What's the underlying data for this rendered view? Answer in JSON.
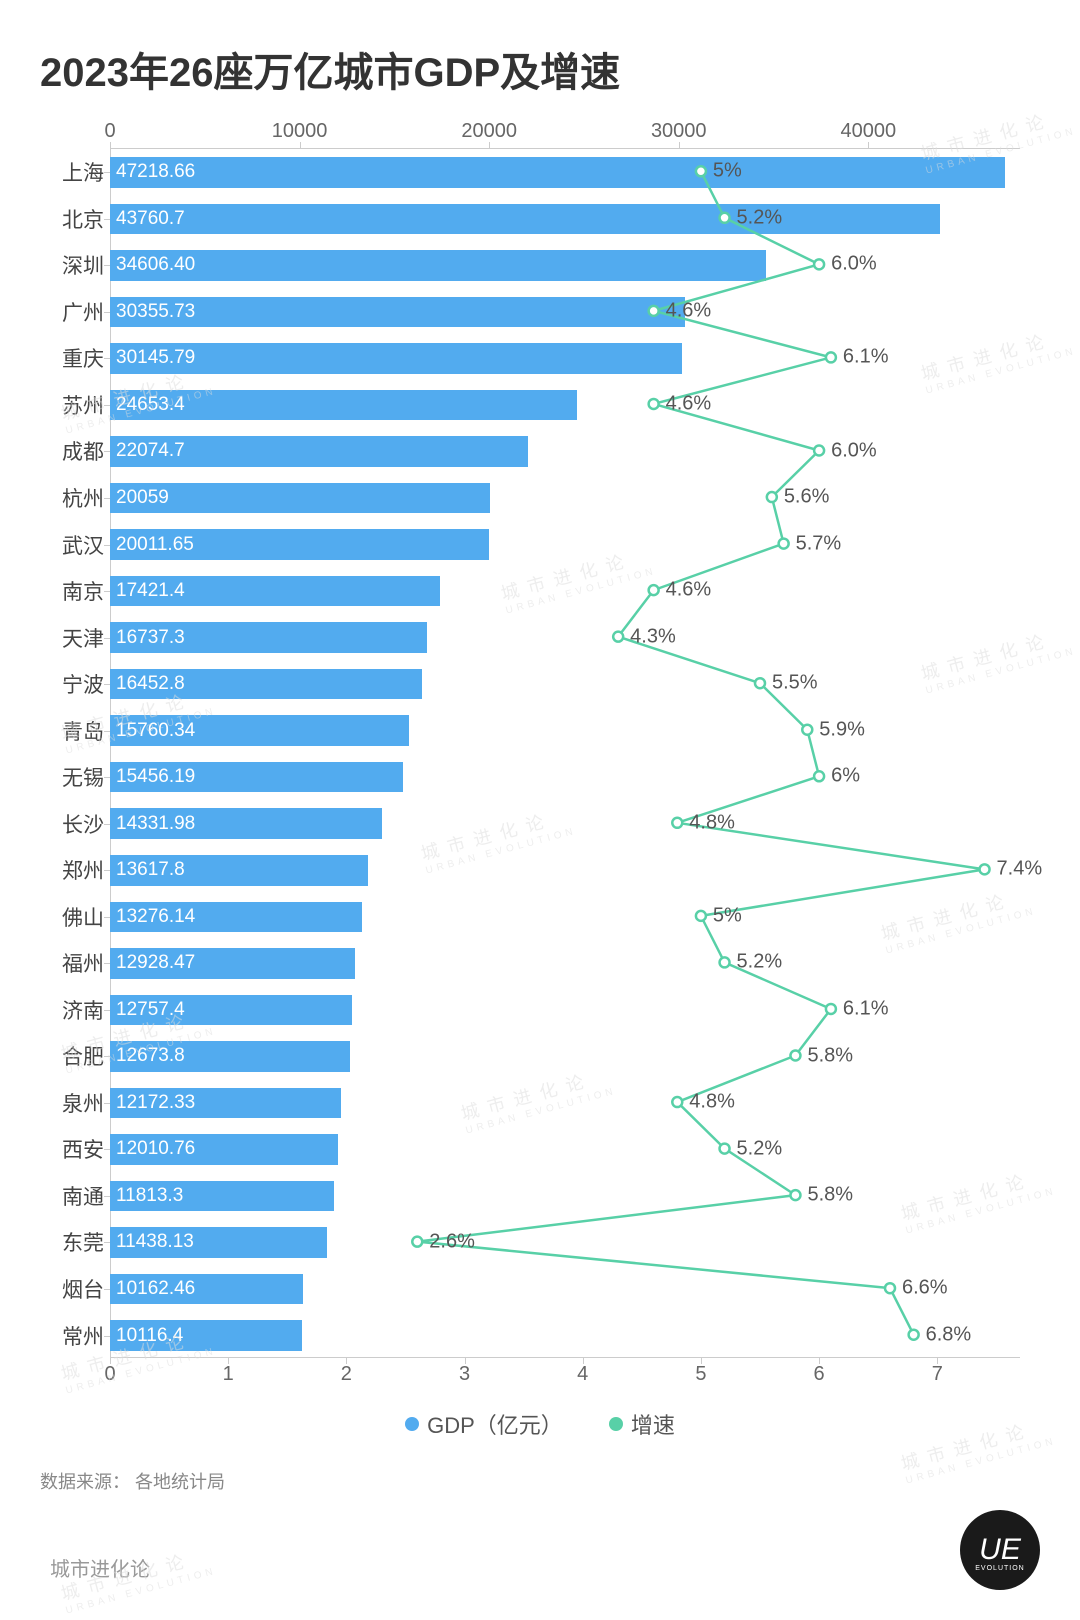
{
  "title": "2023年26座万亿城市GDP及增速",
  "chart": {
    "type": "bar+line",
    "bar_color": "#52abef",
    "bar_text_color": "#ffffff",
    "line_color": "#58d0a7",
    "marker_fill": "#ffffff",
    "marker_stroke": "#58d0a7",
    "axis_color": "#cccccc",
    "label_color": "#555555",
    "background_color": "#ffffff",
    "title_fontsize": 40,
    "axis_fontsize": 20,
    "city_label_fontsize": 21,
    "bar_value_fontsize": 19,
    "growth_label_fontsize": 20,
    "top_axis": {
      "min": 0,
      "max": 48000,
      "ticks": [
        0,
        10000,
        20000,
        30000,
        40000
      ]
    },
    "bottom_axis": {
      "min": 0,
      "max": 7.7,
      "ticks": [
        0,
        1,
        2,
        3,
        4,
        5,
        6,
        7
      ]
    },
    "rows": [
      {
        "city": "上海",
        "gdp": 47218.66,
        "gdp_label": "47218.66",
        "growth": 5.0,
        "growth_label": "5%",
        "label_side": "right"
      },
      {
        "city": "北京",
        "gdp": 43760.7,
        "gdp_label": "43760.7",
        "growth": 5.2,
        "growth_label": "5.2%",
        "label_side": "right"
      },
      {
        "city": "深圳",
        "gdp": 34606.4,
        "gdp_label": "34606.40",
        "growth": 6.0,
        "growth_label": "6.0%",
        "label_side": "right"
      },
      {
        "city": "广州",
        "gdp": 30355.73,
        "gdp_label": "30355.73",
        "growth": 4.6,
        "growth_label": "4.6%",
        "label_side": "right"
      },
      {
        "city": "重庆",
        "gdp": 30145.79,
        "gdp_label": "30145.79",
        "growth": 6.1,
        "growth_label": "6.1%",
        "label_side": "right"
      },
      {
        "city": "苏州",
        "gdp": 24653.4,
        "gdp_label": "24653.4",
        "growth": 4.6,
        "growth_label": "4.6%",
        "label_side": "right"
      },
      {
        "city": "成都",
        "gdp": 22074.7,
        "gdp_label": "22074.7",
        "growth": 6.0,
        "growth_label": "6.0%",
        "label_side": "right"
      },
      {
        "city": "杭州",
        "gdp": 20059,
        "gdp_label": "20059",
        "growth": 5.6,
        "growth_label": "5.6%",
        "label_side": "right"
      },
      {
        "city": "武汉",
        "gdp": 20011.65,
        "gdp_label": "20011.65",
        "growth": 5.7,
        "growth_label": "5.7%",
        "label_side": "right"
      },
      {
        "city": "南京",
        "gdp": 17421.4,
        "gdp_label": "17421.4",
        "growth": 4.6,
        "growth_label": "4.6%",
        "label_side": "right"
      },
      {
        "city": "天津",
        "gdp": 16737.3,
        "gdp_label": "16737.3",
        "growth": 4.3,
        "growth_label": "4.3%",
        "label_side": "right"
      },
      {
        "city": "宁波",
        "gdp": 16452.8,
        "gdp_label": "16452.8",
        "growth": 5.5,
        "growth_label": "5.5%",
        "label_side": "right"
      },
      {
        "city": "青岛",
        "gdp": 15760.34,
        "gdp_label": "15760.34",
        "growth": 5.9,
        "growth_label": "5.9%",
        "label_side": "right"
      },
      {
        "city": "无锡",
        "gdp": 15456.19,
        "gdp_label": "15456.19",
        "growth": 6.0,
        "growth_label": "6%",
        "label_side": "right"
      },
      {
        "city": "长沙",
        "gdp": 14331.98,
        "gdp_label": "14331.98",
        "growth": 4.8,
        "growth_label": "4.8%",
        "label_side": "right"
      },
      {
        "city": "郑州",
        "gdp": 13617.8,
        "gdp_label": "13617.8",
        "growth": 7.4,
        "growth_label": "7.4%",
        "label_side": "right"
      },
      {
        "city": "佛山",
        "gdp": 13276.14,
        "gdp_label": "13276.14",
        "growth": 5.0,
        "growth_label": "5%",
        "label_side": "right"
      },
      {
        "city": "福州",
        "gdp": 12928.47,
        "gdp_label": "12928.47",
        "growth": 5.2,
        "growth_label": "5.2%",
        "label_side": "right"
      },
      {
        "city": "济南",
        "gdp": 12757.4,
        "gdp_label": "12757.4",
        "growth": 6.1,
        "growth_label": "6.1%",
        "label_side": "right"
      },
      {
        "city": "合肥",
        "gdp": 12673.8,
        "gdp_label": "12673.8",
        "growth": 5.8,
        "growth_label": "5.8%",
        "label_side": "right"
      },
      {
        "city": "泉州",
        "gdp": 12172.33,
        "gdp_label": "12172.33",
        "growth": 4.8,
        "growth_label": "4.8%",
        "label_side": "right"
      },
      {
        "city": "西安",
        "gdp": 12010.76,
        "gdp_label": "12010.76",
        "growth": 5.2,
        "growth_label": "5.2%",
        "label_side": "right"
      },
      {
        "city": "南通",
        "gdp": 11813.3,
        "gdp_label": "11813.3",
        "growth": 5.8,
        "growth_label": "5.8%",
        "label_side": "right"
      },
      {
        "city": "东莞",
        "gdp": 11438.13,
        "gdp_label": "11438.13",
        "growth": 2.6,
        "growth_label": "2.6%",
        "label_side": "right"
      },
      {
        "city": "烟台",
        "gdp": 10162.46,
        "gdp_label": "10162.46",
        "growth": 6.6,
        "growth_label": "6.6%",
        "label_side": "right"
      },
      {
        "city": "常州",
        "gdp": 10116.4,
        "gdp_label": "10116.4",
        "growth": 6.8,
        "growth_label": "6.8%",
        "label_side": "right"
      }
    ]
  },
  "legend": {
    "gdp_label": "GDP（亿元）",
    "growth_label": "增速"
  },
  "source_label": "数据来源： 各地统计局",
  "brand_label": "城市进化论",
  "watermark_cn": "城 市 进 化 论",
  "watermark_en": "URBAN EVOLUTION",
  "ue_label": "UE",
  "ue_sub": "EVOLUTION"
}
